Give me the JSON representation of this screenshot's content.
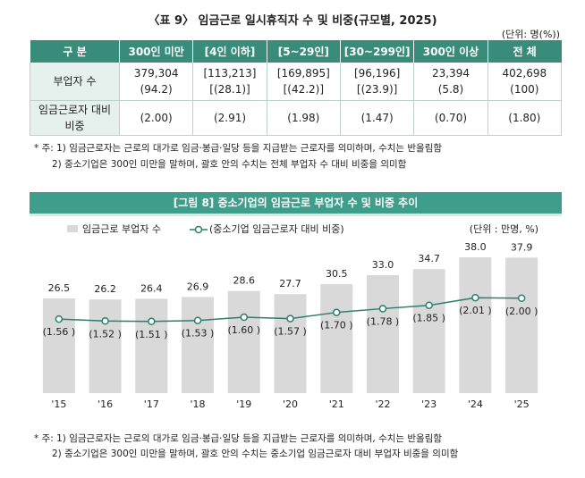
{
  "header": {
    "title": "〈표 9〉 임금근로 일시휴직자 수 및 비중(규모별, 2025)",
    "unit": "(단위: 명(%))"
  },
  "table": {
    "columns": [
      "구 분",
      "300인 미만",
      "[4인 이하]",
      "[5~29인]",
      "[30~299인]",
      "300인 이상",
      "전 체"
    ],
    "rows": [
      [
        [
          "부업자 수"
        ],
        [
          "379,304",
          "(94.2)"
        ],
        [
          "[113,213]",
          "[(28.1)]"
        ],
        [
          "[169,895]",
          "[(42.2)]"
        ],
        [
          "[96,196]",
          "[(23.9)]"
        ],
        [
          "23,394",
          "(5.8)"
        ],
        [
          "402,698",
          "(100)"
        ]
      ],
      [
        [
          "임금근로자 대비",
          "비중"
        ],
        [
          "(2.00)"
        ],
        [
          "(2.91)"
        ],
        [
          "(1.98)"
        ],
        [
          "(1.47)"
        ],
        [
          "(0.70)"
        ],
        [
          "(1.80)"
        ]
      ]
    ]
  },
  "table_notes": [
    "* 주: 1) 임금근로자는 근로의 대가로 임금·봉급·일당 등을 지급받는 근로자를 의미하며, 수치는 반올림함",
    "2) 중소기업은 300인 미만을 말하며, 괄호 안의 수치는 전체 부업자 수 대비 비중을 의미함"
  ],
  "chart_data": {
    "type": "bar-line",
    "title": "[그림 8] 중소기업의 임금근로 부업자 수 및 비중 추이",
    "unit": "(단위 : 만명, %)",
    "categories": [
      "'15",
      "'16",
      "'17",
      "'18",
      "'19",
      "'20",
      "'21",
      "'22",
      "'23",
      "'24",
      "'25"
    ],
    "series": [
      {
        "name": "임금근로 부업자 수",
        "color": "#d9d9d9",
        "values": [
          26.5,
          26.2,
          26.4,
          26.9,
          28.6,
          27.7,
          30.5,
          33.0,
          34.7,
          38.0,
          37.9
        ],
        "value_labels": [
          "26.5",
          "26.2",
          "26.4",
          "26.9",
          "28.6",
          "27.7",
          "30.5",
          "33.0",
          "34.7",
          "38.0",
          "37.9"
        ]
      },
      {
        "name": "(중소기업 임금근로자 대비 비중)",
        "color": "#2e7d6e",
        "axis": "y2",
        "values": [
          1.56,
          1.52,
          1.51,
          1.53,
          1.6,
          1.57,
          1.7,
          1.78,
          1.85,
          2.01,
          2.0
        ],
        "value_labels": [
          "(1.56 )",
          "(1.52 )",
          "(1.51 )",
          "(1.53 )",
          "(1.60 )",
          "(1.57 )",
          "(1.70 )",
          "(1.78 )",
          "(1.85 )",
          "(2.01 )",
          "(2.00 )"
        ]
      }
    ],
    "ylim": [
      0,
      42.5
    ],
    "y2lim": [
      0,
      3.2
    ]
  },
  "chart_notes": [
    "* 주: 1) 임금근로자는 근로의 대가로 임금·봉급·일당 등을 지급받는 근로자를 의미하며, 수치는 반올림함",
    "2) 중소기업은 300인 미만을 말하며, 괄호 안의 수치는 중소기업 임금근로자 대비 부업자 비중을 의미함"
  ]
}
